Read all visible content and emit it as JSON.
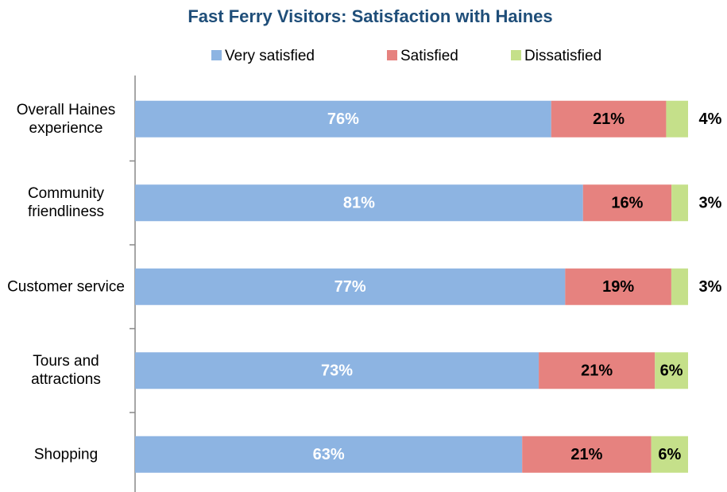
{
  "chart_data": {
    "type": "bar",
    "orientation": "horizontal",
    "stacked": "percent",
    "title": "Fast Ferry Visitors: Satisfaction with Haines",
    "categories": [
      "Overall Haines experience",
      "Community friendliness",
      "Customer service",
      "Tours and attractions",
      "Shopping"
    ],
    "series": [
      {
        "name": "Very satisfied",
        "color": "#8db4e2",
        "values": [
          76,
          81,
          77,
          73,
          63
        ],
        "value_labels": [
          "76%",
          "81%",
          "77%",
          "73%",
          "63%"
        ]
      },
      {
        "name": "Satisfied",
        "color": "#e6827f",
        "values": [
          21,
          16,
          19,
          21,
          21
        ],
        "value_labels": [
          "21%",
          "16%",
          "19%",
          "21%",
          "21%"
        ]
      },
      {
        "name": "Dissatisfied",
        "color": "#c5e08a",
        "values": [
          4,
          3,
          3,
          6,
          6
        ],
        "value_labels": [
          "4%",
          "3%",
          "3%",
          "6%",
          "6%"
        ]
      }
    ],
    "legend": "top"
  }
}
